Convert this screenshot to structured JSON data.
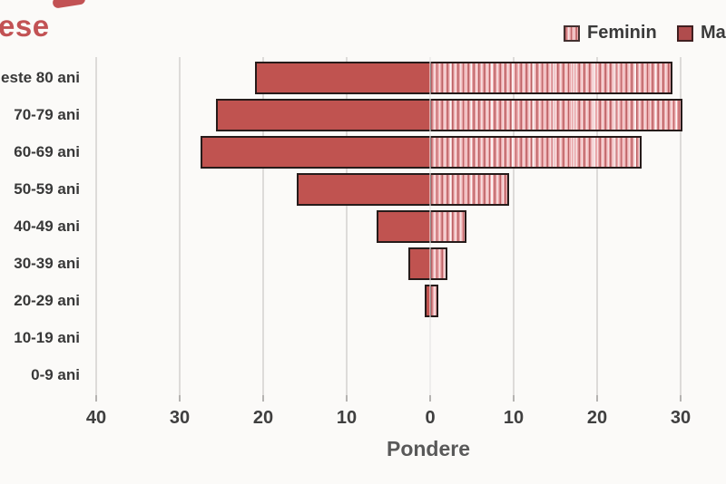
{
  "title": {
    "text": "ese"
  },
  "legend": {
    "items": [
      {
        "label": "Feminin",
        "swatch": "striped-pink"
      },
      {
        "label": "Ma",
        "swatch": "solid-red"
      }
    ]
  },
  "colors": {
    "masculin": "#c05350",
    "masculin_legend": "#b04c4d",
    "feminin_base": "#eba9ac",
    "feminin_stripe_dark": "#bb6164",
    "feminin_stripe_light": "#f7e0e1",
    "bar_border": "#261b1a",
    "title_red": "#c25254",
    "axis_text": "#3f3f3f",
    "gridline": "#dddbd9"
  },
  "chart_data": {
    "type": "bar",
    "subtype": "population_pyramid",
    "orientation": "horizontal",
    "title_visible_fragment": "ese",
    "categories": [
      "este 80 ani",
      "70-79 ani",
      "60-69 ani",
      "50-59 ani",
      "40-49 ani",
      "30-39 ani",
      "20-29 ani",
      "10-19 ani",
      "0-9 ani"
    ],
    "series": [
      {
        "name": "Ma",
        "side": "left",
        "values": [
          21.0,
          25.6,
          27.5,
          16.0,
          6.4,
          2.6,
          0.7,
          0,
          0
        ]
      },
      {
        "name": "Feminin",
        "side": "right",
        "values": [
          29.0,
          30.2,
          25.3,
          9.5,
          4.3,
          2.1,
          1.0,
          0,
          0
        ]
      }
    ],
    "xlabel": "Pondere",
    "x_ticks": [
      {
        "label": "40",
        "value": -40
      },
      {
        "label": "30",
        "value": -30
      },
      {
        "label": "20",
        "value": -20
      },
      {
        "label": "10",
        "value": -10
      },
      {
        "label": "0",
        "value": 0
      },
      {
        "label": "10",
        "value": 10
      },
      {
        "label": "20",
        "value": 20
      },
      {
        "label": "30",
        "value": 30
      }
    ],
    "xlim": [
      -40,
      35.5
    ],
    "grid": "vertical",
    "legend_position": "top-right"
  }
}
